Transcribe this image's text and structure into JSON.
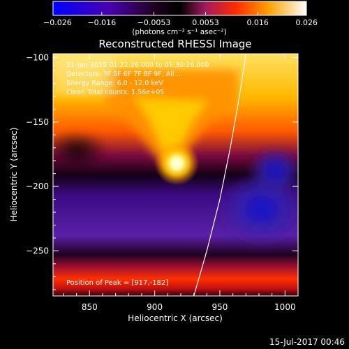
{
  "colorbar": {
    "ticks": [
      "−0.026",
      "−0.016",
      "−0.0053",
      "0.0053",
      "0.016",
      "0.026"
    ],
    "tick_values": [
      -0.026,
      -0.016,
      -0.0053,
      0.0053,
      0.016,
      0.026
    ],
    "unit_label": "(photons cm⁻² s⁻¹ asec⁻²)",
    "colors": [
      "#0000ff",
      "#4000a0",
      "#000000",
      "#8a1a8a",
      "#ff2000",
      "#ff9a00",
      "#ffffc0",
      "#ffffff"
    ]
  },
  "chart_data": {
    "type": "heatmap",
    "title": "Reconstructed RHESSI Image",
    "xlabel": "Heliocentric X (arcsec)",
    "ylabel": "Heliocentric Y (arcsec)",
    "xlim": [
      822,
      1010
    ],
    "ylim": [
      -285,
      -97
    ],
    "x_ticks": [
      850,
      900,
      950,
      1000
    ],
    "y_ticks": [
      -100,
      -150,
      -200,
      -250
    ],
    "x_tick_labels": [
      "850",
      "900",
      "950",
      "1000"
    ],
    "y_tick_labels": [
      "−100",
      "−150",
      "−200",
      "−250"
    ],
    "peak": [
      917,
      -182
    ],
    "limb_curve": [
      [
        930,
        -285
      ],
      [
        940,
        -250
      ],
      [
        950,
        -210
      ],
      [
        958,
        -170
      ],
      [
        965,
        -130
      ],
      [
        970,
        -97
      ]
    ],
    "info_lines": [
      "21-Jan-2015 01:22:26.000 to 01:30:26.000",
      "Detectors: 3F 5F 6F 7F 8F 9F, All ...",
      "Energy Range: 6.0 - 12.0 keV",
      "Clean      Total counts: 1.56e+05"
    ],
    "peak_label": "Position of Peak = [917,-182]"
  },
  "footer": {
    "date": "15-Jul-2017 00:46"
  }
}
